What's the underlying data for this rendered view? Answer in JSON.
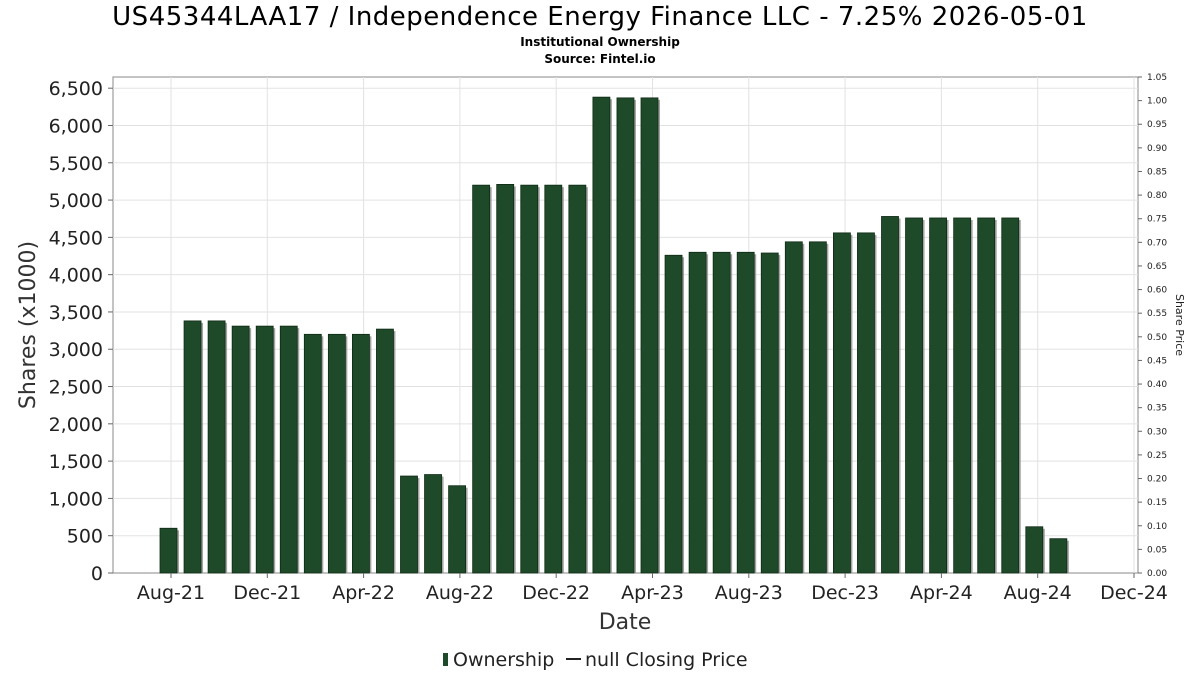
{
  "chart_data": {
    "type": "bar",
    "title": "US45344LAA17 / Independence Energy Finance LLC - 7.25% 2026-05-01",
    "subtitle": "Institutional Ownership",
    "source": "Source: Fintel.io",
    "xlabel": "Date",
    "ylabel": "Shares (x1000)",
    "y2label": "Share Price",
    "ylim": [
      0,
      6650
    ],
    "y2lim": [
      0,
      1.05
    ],
    "yticks": [
      "0",
      "500",
      "1,000",
      "1,500",
      "2,000",
      "2,500",
      "3,000",
      "3,500",
      "4,000",
      "4,500",
      "5,000",
      "5,500",
      "6,000",
      "6,500"
    ],
    "y2ticks": [
      "0.00",
      "0.05",
      "0.10",
      "0.15",
      "0.20",
      "0.25",
      "0.30",
      "0.35",
      "0.40",
      "0.45",
      "0.50",
      "0.55",
      "0.60",
      "0.65",
      "0.70",
      "0.75",
      "0.80",
      "0.85",
      "0.90",
      "0.95",
      "1.00",
      "1.05"
    ],
    "xticks": [
      "Aug-21",
      "Dec-21",
      "Apr-22",
      "Aug-22",
      "Dec-22",
      "Apr-23",
      "Aug-23",
      "Dec-23",
      "Apr-24",
      "Aug-24",
      "Dec-24"
    ],
    "grid": true,
    "legend_position": "bottom-center",
    "series": [
      {
        "name": "Ownership",
        "color": "#1f4a2a",
        "values": [
          600,
          3380,
          3380,
          3310,
          3310,
          3310,
          3200,
          3200,
          3200,
          3270,
          1300,
          1320,
          1170,
          5200,
          5210,
          5200,
          5200,
          5200,
          6380,
          6370,
          6370,
          4260,
          4300,
          4300,
          4300,
          4290,
          4440,
          4440,
          4560,
          4560,
          4780,
          4760,
          4760,
          4760,
          4760,
          4760,
          620,
          460
        ]
      }
    ],
    "legend": {
      "ownership_label": "Ownership",
      "price_label": "null Closing Price"
    }
  }
}
